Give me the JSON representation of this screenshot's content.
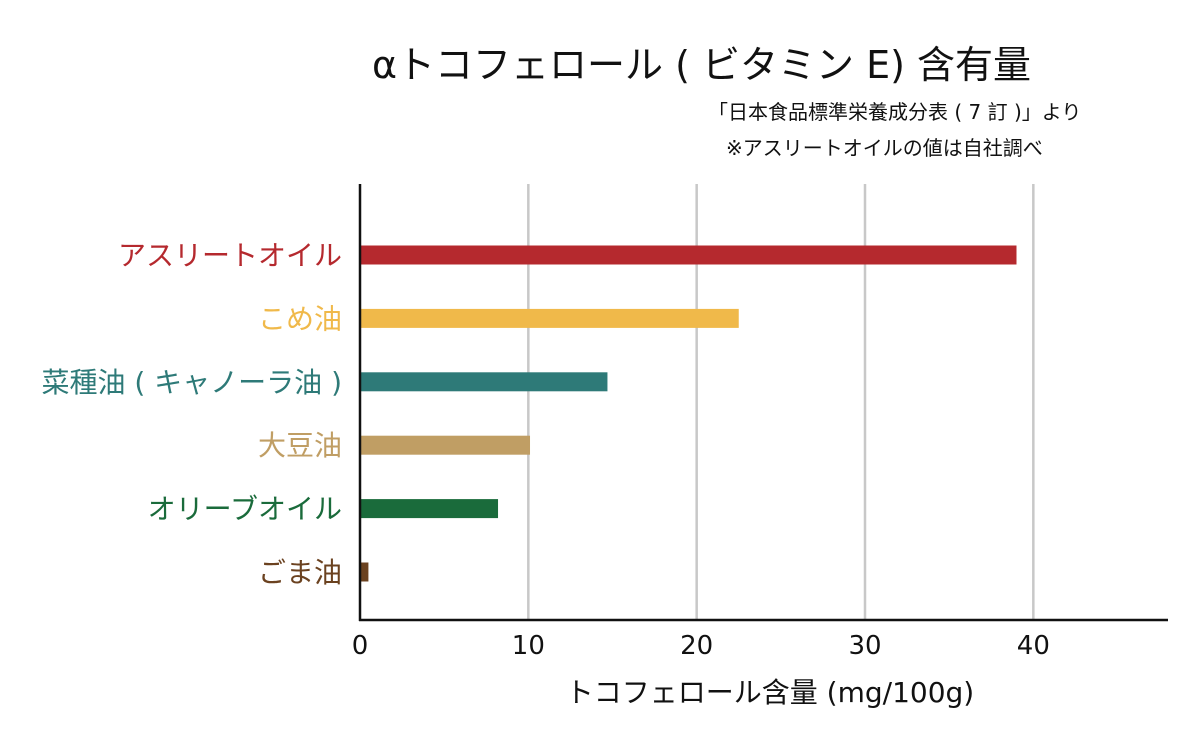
{
  "chart_data": {
    "type": "bar",
    "orientation": "horizontal",
    "title": "αトコフェロール ( ビタミン E) 含有量",
    "notes": [
      "「日本食品標準栄養成分表 ( 7 訂 )」より",
      "※アスリートオイルの値は自社調べ"
    ],
    "xlabel": "トコフェロール含量 (mg/100g)",
    "ylabel": "",
    "xlim": [
      0,
      48
    ],
    "xticks": [
      0,
      10,
      20,
      30,
      40
    ],
    "grid": true,
    "categories": [
      "アスリートオイル",
      "こめ油",
      "菜種油 ( キャノーラ油 )",
      "大豆油",
      "オリーブオイル",
      "ごま油"
    ],
    "values": [
      39.0,
      22.5,
      14.7,
      10.1,
      8.2,
      0.5
    ],
    "colors": [
      "#b5292e",
      "#f0b94a",
      "#2e7a78",
      "#c09e64",
      "#1a6b3b",
      "#6b4220"
    ]
  }
}
